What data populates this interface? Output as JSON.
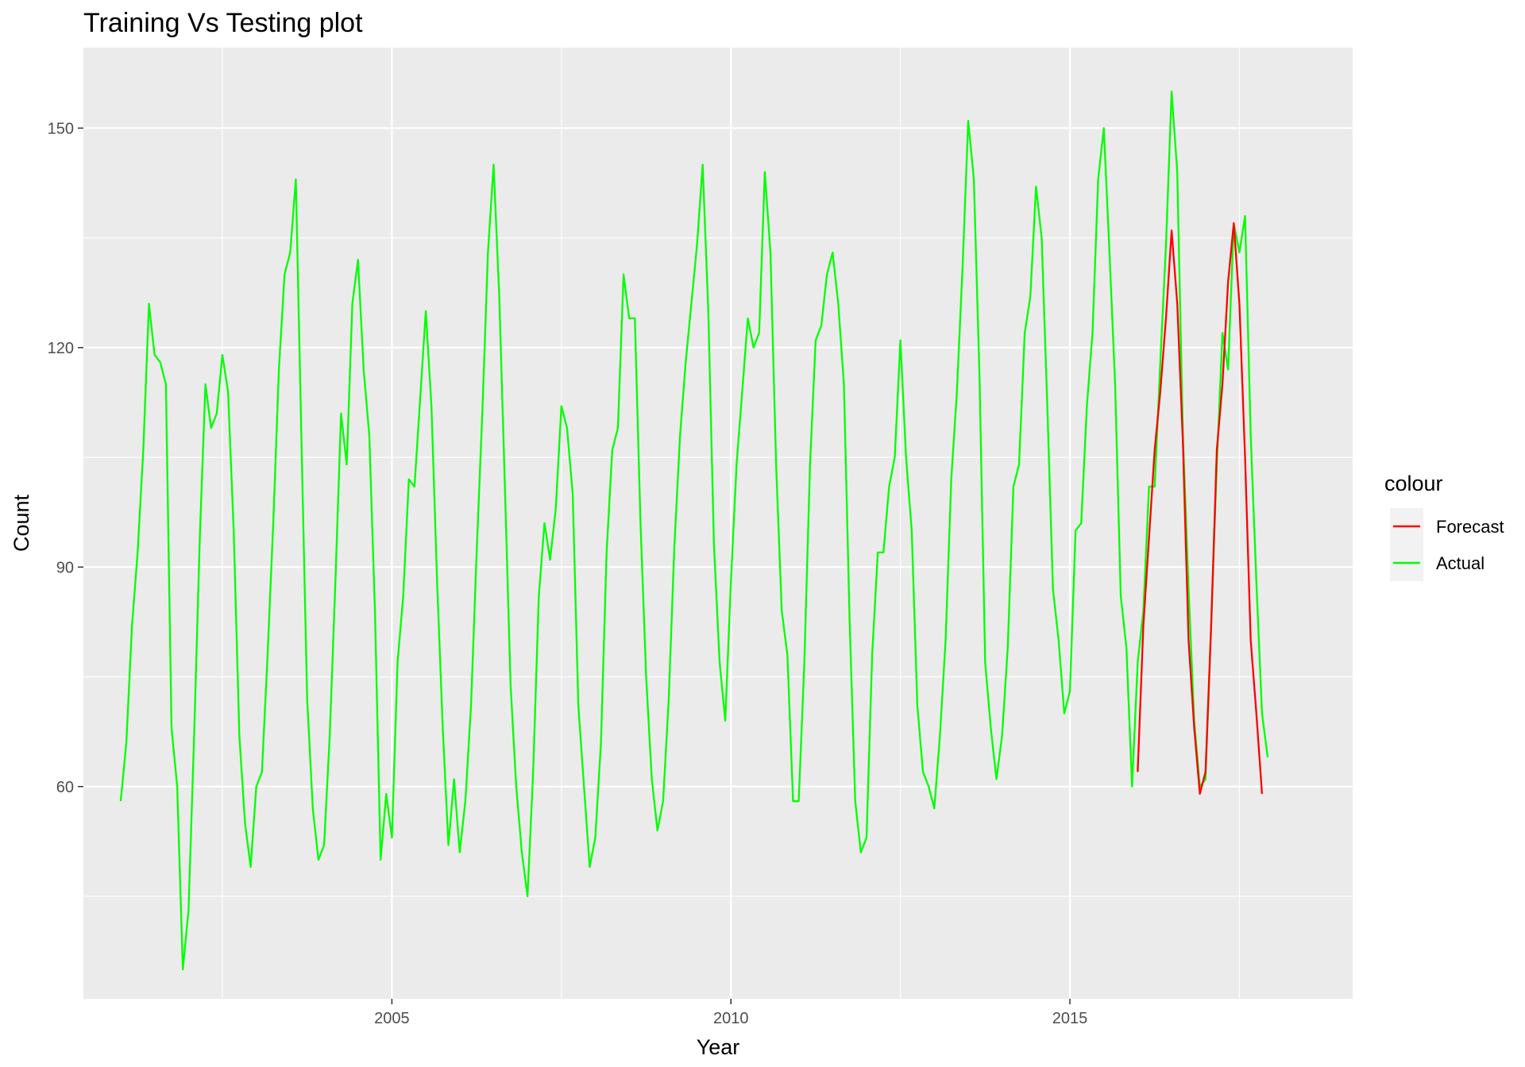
{
  "chart_data": {
    "type": "line",
    "title": "Training Vs Testing plot",
    "xlabel": "Year",
    "ylabel": "Count",
    "xlim": [
      2000.45,
      2019.17
    ],
    "ylim": [
      31,
      161
    ],
    "x_ticks": [
      2005,
      2010,
      2015
    ],
    "x_tick_labels": [
      "2005",
      "2010",
      "2015"
    ],
    "y_ticks": [
      60,
      90,
      120,
      150
    ],
    "y_tick_labels": [
      "60",
      "90",
      "120",
      "150"
    ],
    "grid": true,
    "legend": {
      "title": "colour",
      "position": "right",
      "entries": [
        {
          "label": "Forecast",
          "color": "#ff0000"
        },
        {
          "label": "Actual",
          "color": "#00ff00"
        }
      ]
    },
    "series": [
      {
        "name": "Actual",
        "color": "#00ff00",
        "x_start": 2001.0,
        "step": 0.0833333,
        "values": [
          58,
          66,
          82,
          92,
          106,
          126,
          119,
          118,
          115,
          68,
          60,
          35,
          43,
          67,
          94,
          115,
          109,
          111,
          119,
          114,
          95,
          67,
          55,
          49,
          60,
          62,
          78,
          96,
          117,
          130,
          133,
          143,
          107,
          72,
          57,
          50,
          52,
          67,
          88,
          111,
          104,
          126,
          132,
          117,
          108,
          84,
          50,
          59,
          53,
          77,
          86,
          102,
          101,
          113,
          125,
          112,
          88,
          68,
          52,
          61,
          51,
          58,
          71,
          92,
          111,
          133,
          145,
          127,
          101,
          74,
          60,
          51,
          45,
          62,
          86,
          96,
          91,
          98,
          112,
          109,
          100,
          71,
          60,
          49,
          53,
          66,
          92,
          106,
          109,
          130,
          124,
          124,
          96,
          75,
          61,
          54,
          58,
          72,
          93,
          108,
          118,
          126,
          134,
          145,
          125,
          93,
          77,
          69,
          88,
          104,
          114,
          124,
          120,
          122,
          144,
          133,
          104,
          84,
          78,
          58,
          58,
          77,
          104,
          121,
          123,
          130,
          133,
          126,
          115,
          83,
          58,
          51,
          53,
          78,
          92,
          92,
          101,
          105,
          121,
          105,
          95,
          71,
          62,
          60,
          57,
          67,
          80,
          102,
          114,
          131,
          151,
          143,
          116,
          77,
          68,
          61,
          67,
          79,
          101,
          104,
          122,
          127,
          142,
          135,
          112,
          87,
          80,
          70,
          73,
          95,
          96,
          112,
          122,
          143,
          150,
          133,
          115,
          86,
          79,
          60,
          77,
          84,
          101,
          101,
          118,
          134,
          155,
          144,
          108,
          87,
          69,
          60,
          61,
          82,
          104,
          122,
          117,
          137,
          133,
          138,
          108,
          88,
          70,
          64
        ]
      },
      {
        "name": "Forecast",
        "color": "#ff0000",
        "x_start": 2016.0,
        "step": 0.0833333,
        "values": [
          62,
          82,
          94,
          106,
          114,
          124,
          136,
          126,
          107,
          80,
          68,
          59,
          62,
          82,
          106,
          115,
          129,
          137,
          126,
          105,
          80,
          70,
          59
        ]
      }
    ]
  }
}
